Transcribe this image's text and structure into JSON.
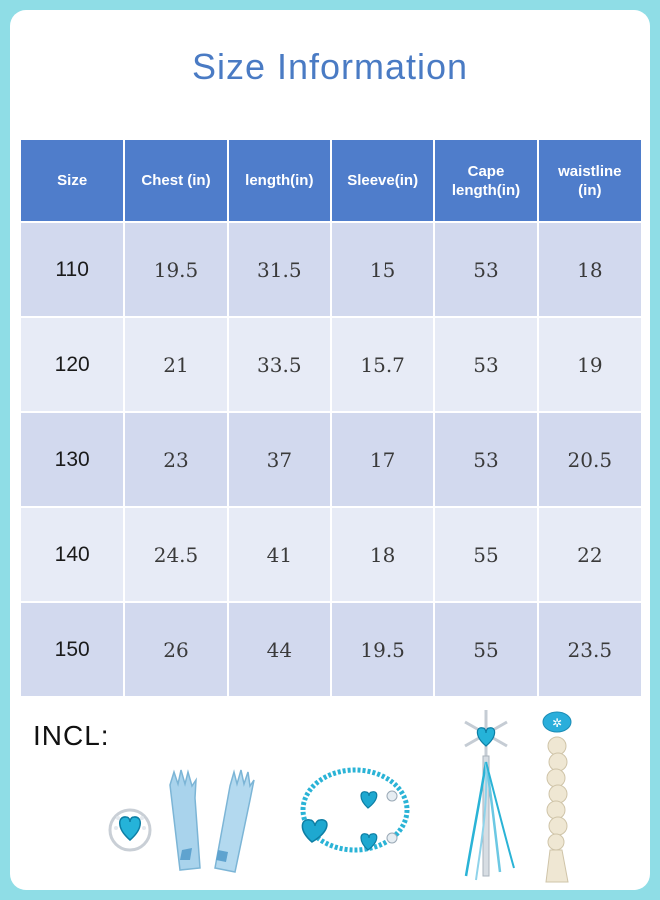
{
  "title": "Size Information",
  "table": {
    "headers": [
      "Size",
      "Chest  (in)",
      "length(in)",
      "Sleeve(in)",
      "Cape\nlength(in)",
      "waistline\n(in)"
    ],
    "rows": [
      [
        "110",
        "19.5",
        "31.5",
        "15",
        "53",
        "18"
      ],
      [
        "120",
        "21",
        "33.5",
        "15.7",
        "53",
        "19"
      ],
      [
        "130",
        "23",
        "37",
        "17",
        "53",
        "20.5"
      ],
      [
        "140",
        "24.5",
        "41",
        "18",
        "55",
        "22"
      ],
      [
        "150",
        "26",
        "44",
        "19.5",
        "55",
        "23.5"
      ]
    ]
  },
  "includes_label": "INCL:",
  "accessories": [
    {
      "item": "ring",
      "icon": "heart-ring-icon"
    },
    {
      "item": "gloves",
      "icon": "gloves-icon"
    },
    {
      "item": "necklace-earrings",
      "icon": "necklace-earrings-icon"
    },
    {
      "item": "wand",
      "icon": "snowflake-wand-icon"
    },
    {
      "item": "wig-braid",
      "icon": "braid-wig-icon"
    }
  ],
  "colors": {
    "background": "#8fdde6",
    "header": "#4f7dcb",
    "title": "#4a7bc4",
    "row_odd": "#d2d9ee",
    "row_even": "#e7ebf6",
    "accent_blue": "#2ab3d6"
  }
}
